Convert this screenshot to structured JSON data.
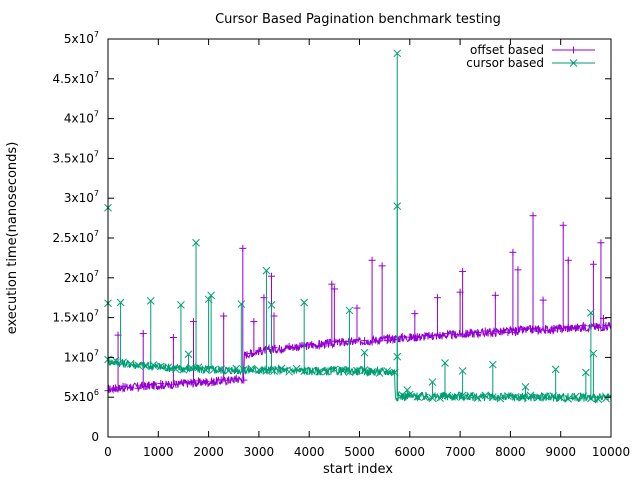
{
  "chart_data": {
    "type": "line",
    "title": "Cursor Based Pagination benchmark testing",
    "xlabel": "start index",
    "ylabel": "execution time(nanoseconds)",
    "xlim": [
      0,
      10000
    ],
    "ylim": [
      0,
      50000000
    ],
    "x_ticks": [
      0,
      1000,
      2000,
      3000,
      4000,
      5000,
      6000,
      7000,
      8000,
      9000,
      10000
    ],
    "y_ticks": [
      {
        "value": 0,
        "mant": "0",
        "exp": ""
      },
      {
        "value": 5000000,
        "mant": "5x10",
        "exp": "6"
      },
      {
        "value": 10000000,
        "mant": "1x10",
        "exp": "7"
      },
      {
        "value": 15000000,
        "mant": "1.5x10",
        "exp": "7"
      },
      {
        "value": 20000000,
        "mant": "2x10",
        "exp": "7"
      },
      {
        "value": 25000000,
        "mant": "2.5x10",
        "exp": "7"
      },
      {
        "value": 30000000,
        "mant": "3x10",
        "exp": "7"
      },
      {
        "value": 35000000,
        "mant": "3.5x10",
        "exp": "7"
      },
      {
        "value": 40000000,
        "mant": "4x10",
        "exp": "7"
      },
      {
        "value": 45000000,
        "mant": "4.5x10",
        "exp": "7"
      },
      {
        "value": 50000000,
        "mant": "5x10",
        "exp": "7"
      }
    ],
    "grid": false,
    "legend_position": "top-right",
    "series": [
      {
        "name": "offset based",
        "color": "#9400d3",
        "marker": "plus",
        "x": [
          0,
          500,
          1000,
          1500,
          2000,
          2500,
          2700,
          2710,
          3000,
          3500,
          4000,
          4500,
          5000,
          5500,
          6000,
          6500,
          7000,
          7500,
          8000,
          8500,
          9000,
          9500,
          10000
        ],
        "y": [
          6000000,
          6300000,
          6500000,
          6700000,
          6900000,
          7200000,
          7300000,
          10300000,
          10800000,
          11200000,
          11500000,
          11800000,
          12000000,
          12300000,
          12500000,
          12700000,
          12900000,
          13100000,
          13300000,
          13500000,
          13600000,
          13800000,
          13900000
        ],
        "spikes": [
          {
            "x": 200,
            "y": 12800000
          },
          {
            "x": 700,
            "y": 13000000
          },
          {
            "x": 1300,
            "y": 12500000
          },
          {
            "x": 1700,
            "y": 14500000
          },
          {
            "x": 2300,
            "y": 15200000
          },
          {
            "x": 2680,
            "y": 23700000
          },
          {
            "x": 2900,
            "y": 14500000
          },
          {
            "x": 3100,
            "y": 17500000
          },
          {
            "x": 3250,
            "y": 20200000
          },
          {
            "x": 3300,
            "y": 15200000
          },
          {
            "x": 4450,
            "y": 19200000
          },
          {
            "x": 4500,
            "y": 18600000
          },
          {
            "x": 4950,
            "y": 16200000
          },
          {
            "x": 5250,
            "y": 22200000
          },
          {
            "x": 5450,
            "y": 21500000
          },
          {
            "x": 6100,
            "y": 15500000
          },
          {
            "x": 6550,
            "y": 17500000
          },
          {
            "x": 7000,
            "y": 18200000
          },
          {
            "x": 7050,
            "y": 20800000
          },
          {
            "x": 7700,
            "y": 17800000
          },
          {
            "x": 8050,
            "y": 23200000
          },
          {
            "x": 8150,
            "y": 21000000
          },
          {
            "x": 8450,
            "y": 27800000
          },
          {
            "x": 8650,
            "y": 17200000
          },
          {
            "x": 9050,
            "y": 26600000
          },
          {
            "x": 9150,
            "y": 22200000
          },
          {
            "x": 9650,
            "y": 21700000
          },
          {
            "x": 9800,
            "y": 24400000
          },
          {
            "x": 9850,
            "y": 14900000
          }
        ]
      },
      {
        "name": "cursor based",
        "color": "#009e73",
        "marker": "x",
        "x": [
          0,
          500,
          1000,
          1500,
          2000,
          2500,
          3000,
          3500,
          4000,
          4500,
          5000,
          5500,
          5700,
          5710,
          6500,
          7000,
          8000,
          9000,
          10000
        ],
        "y": [
          9500000,
          9100000,
          8800000,
          8600000,
          8500000,
          8400000,
          8400000,
          8400000,
          8300000,
          8300000,
          8300000,
          8200000,
          8200000,
          5100000,
          5100000,
          5100000,
          5000000,
          5000000,
          4900000
        ],
        "spikes": [
          {
            "x": 0,
            "y": 28800000
          },
          {
            "x": 0,
            "y": 16800000
          },
          {
            "x": 250,
            "y": 16900000
          },
          {
            "x": 850,
            "y": 17100000
          },
          {
            "x": 1450,
            "y": 16600000
          },
          {
            "x": 1600,
            "y": 10400000
          },
          {
            "x": 1750,
            "y": 24400000
          },
          {
            "x": 2000,
            "y": 17300000
          },
          {
            "x": 2050,
            "y": 17800000
          },
          {
            "x": 2650,
            "y": 16700000
          },
          {
            "x": 3150,
            "y": 20900000
          },
          {
            "x": 3250,
            "y": 16600000
          },
          {
            "x": 3900,
            "y": 16900000
          },
          {
            "x": 4800,
            "y": 15900000
          },
          {
            "x": 5100,
            "y": 10600000
          },
          {
            "x": 5750,
            "y": 48200000
          },
          {
            "x": 5750,
            "y": 29000000
          },
          {
            "x": 5750,
            "y": 10100000
          },
          {
            "x": 5950,
            "y": 5900000
          },
          {
            "x": 6450,
            "y": 6900000
          },
          {
            "x": 6700,
            "y": 9300000
          },
          {
            "x": 7050,
            "y": 8300000
          },
          {
            "x": 7650,
            "y": 9100000
          },
          {
            "x": 8300,
            "y": 6300000
          },
          {
            "x": 8900,
            "y": 8500000
          },
          {
            "x": 9500,
            "y": 8100000
          },
          {
            "x": 9600,
            "y": 15600000
          },
          {
            "x": 9650,
            "y": 10500000
          }
        ]
      }
    ]
  }
}
